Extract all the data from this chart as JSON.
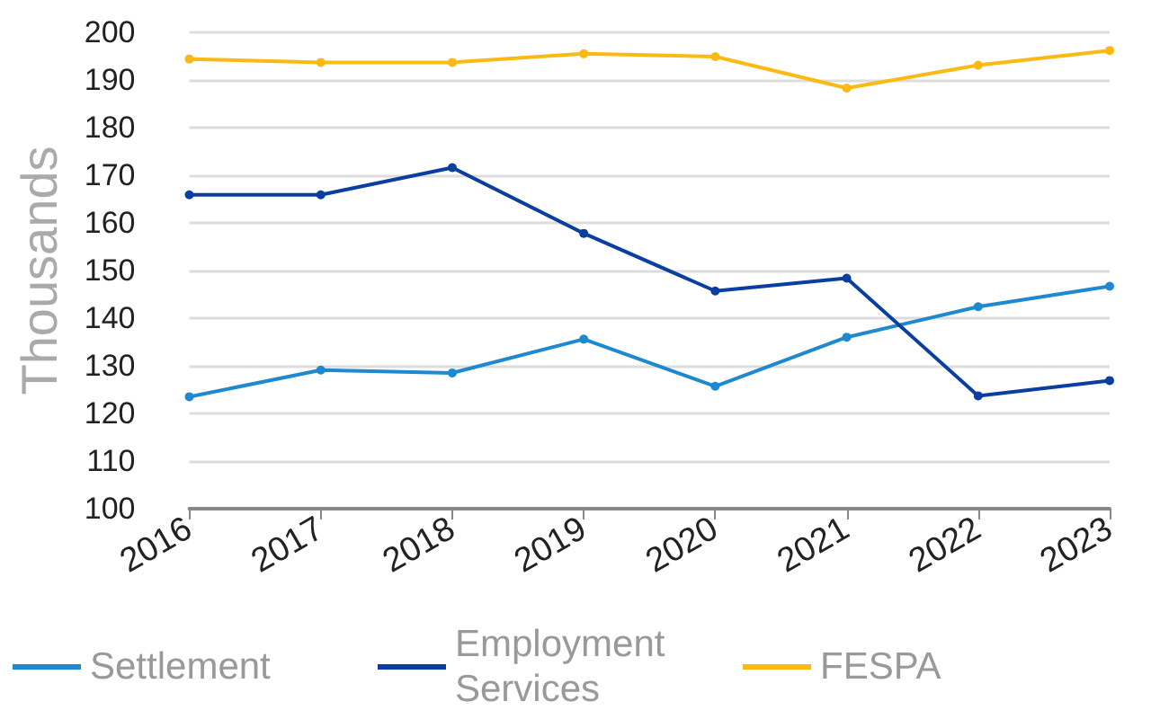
{
  "chart_data": {
    "type": "line",
    "ylabel": "Thousands",
    "categories": [
      "2016",
      "2017",
      "2018",
      "2019",
      "2020",
      "2021",
      "2022",
      "2023"
    ],
    "series": [
      {
        "name": "Settlement",
        "color": "#1e88d0",
        "values": [
          123.5,
          129.1,
          128.5,
          135.6,
          125.7,
          136.0,
          142.4,
          146.7
        ]
      },
      {
        "name": "Employment Services",
        "color": "#0a3ea0",
        "values": [
          165.9,
          165.9,
          171.6,
          157.8,
          145.7,
          148.4,
          123.7,
          126.9
        ]
      },
      {
        "name": "FESPA",
        "color": "#fdb913",
        "values": [
          194.4,
          193.7,
          193.7,
          195.5,
          194.9,
          188.3,
          193.1,
          196.2
        ]
      }
    ],
    "ylim": [
      100,
      200
    ],
    "yticks": [
      100,
      110,
      120,
      130,
      140,
      150,
      160,
      170,
      180,
      190,
      200
    ],
    "grid": "y",
    "legend": "bottom",
    "marker": "circle",
    "line_style": "solid"
  }
}
